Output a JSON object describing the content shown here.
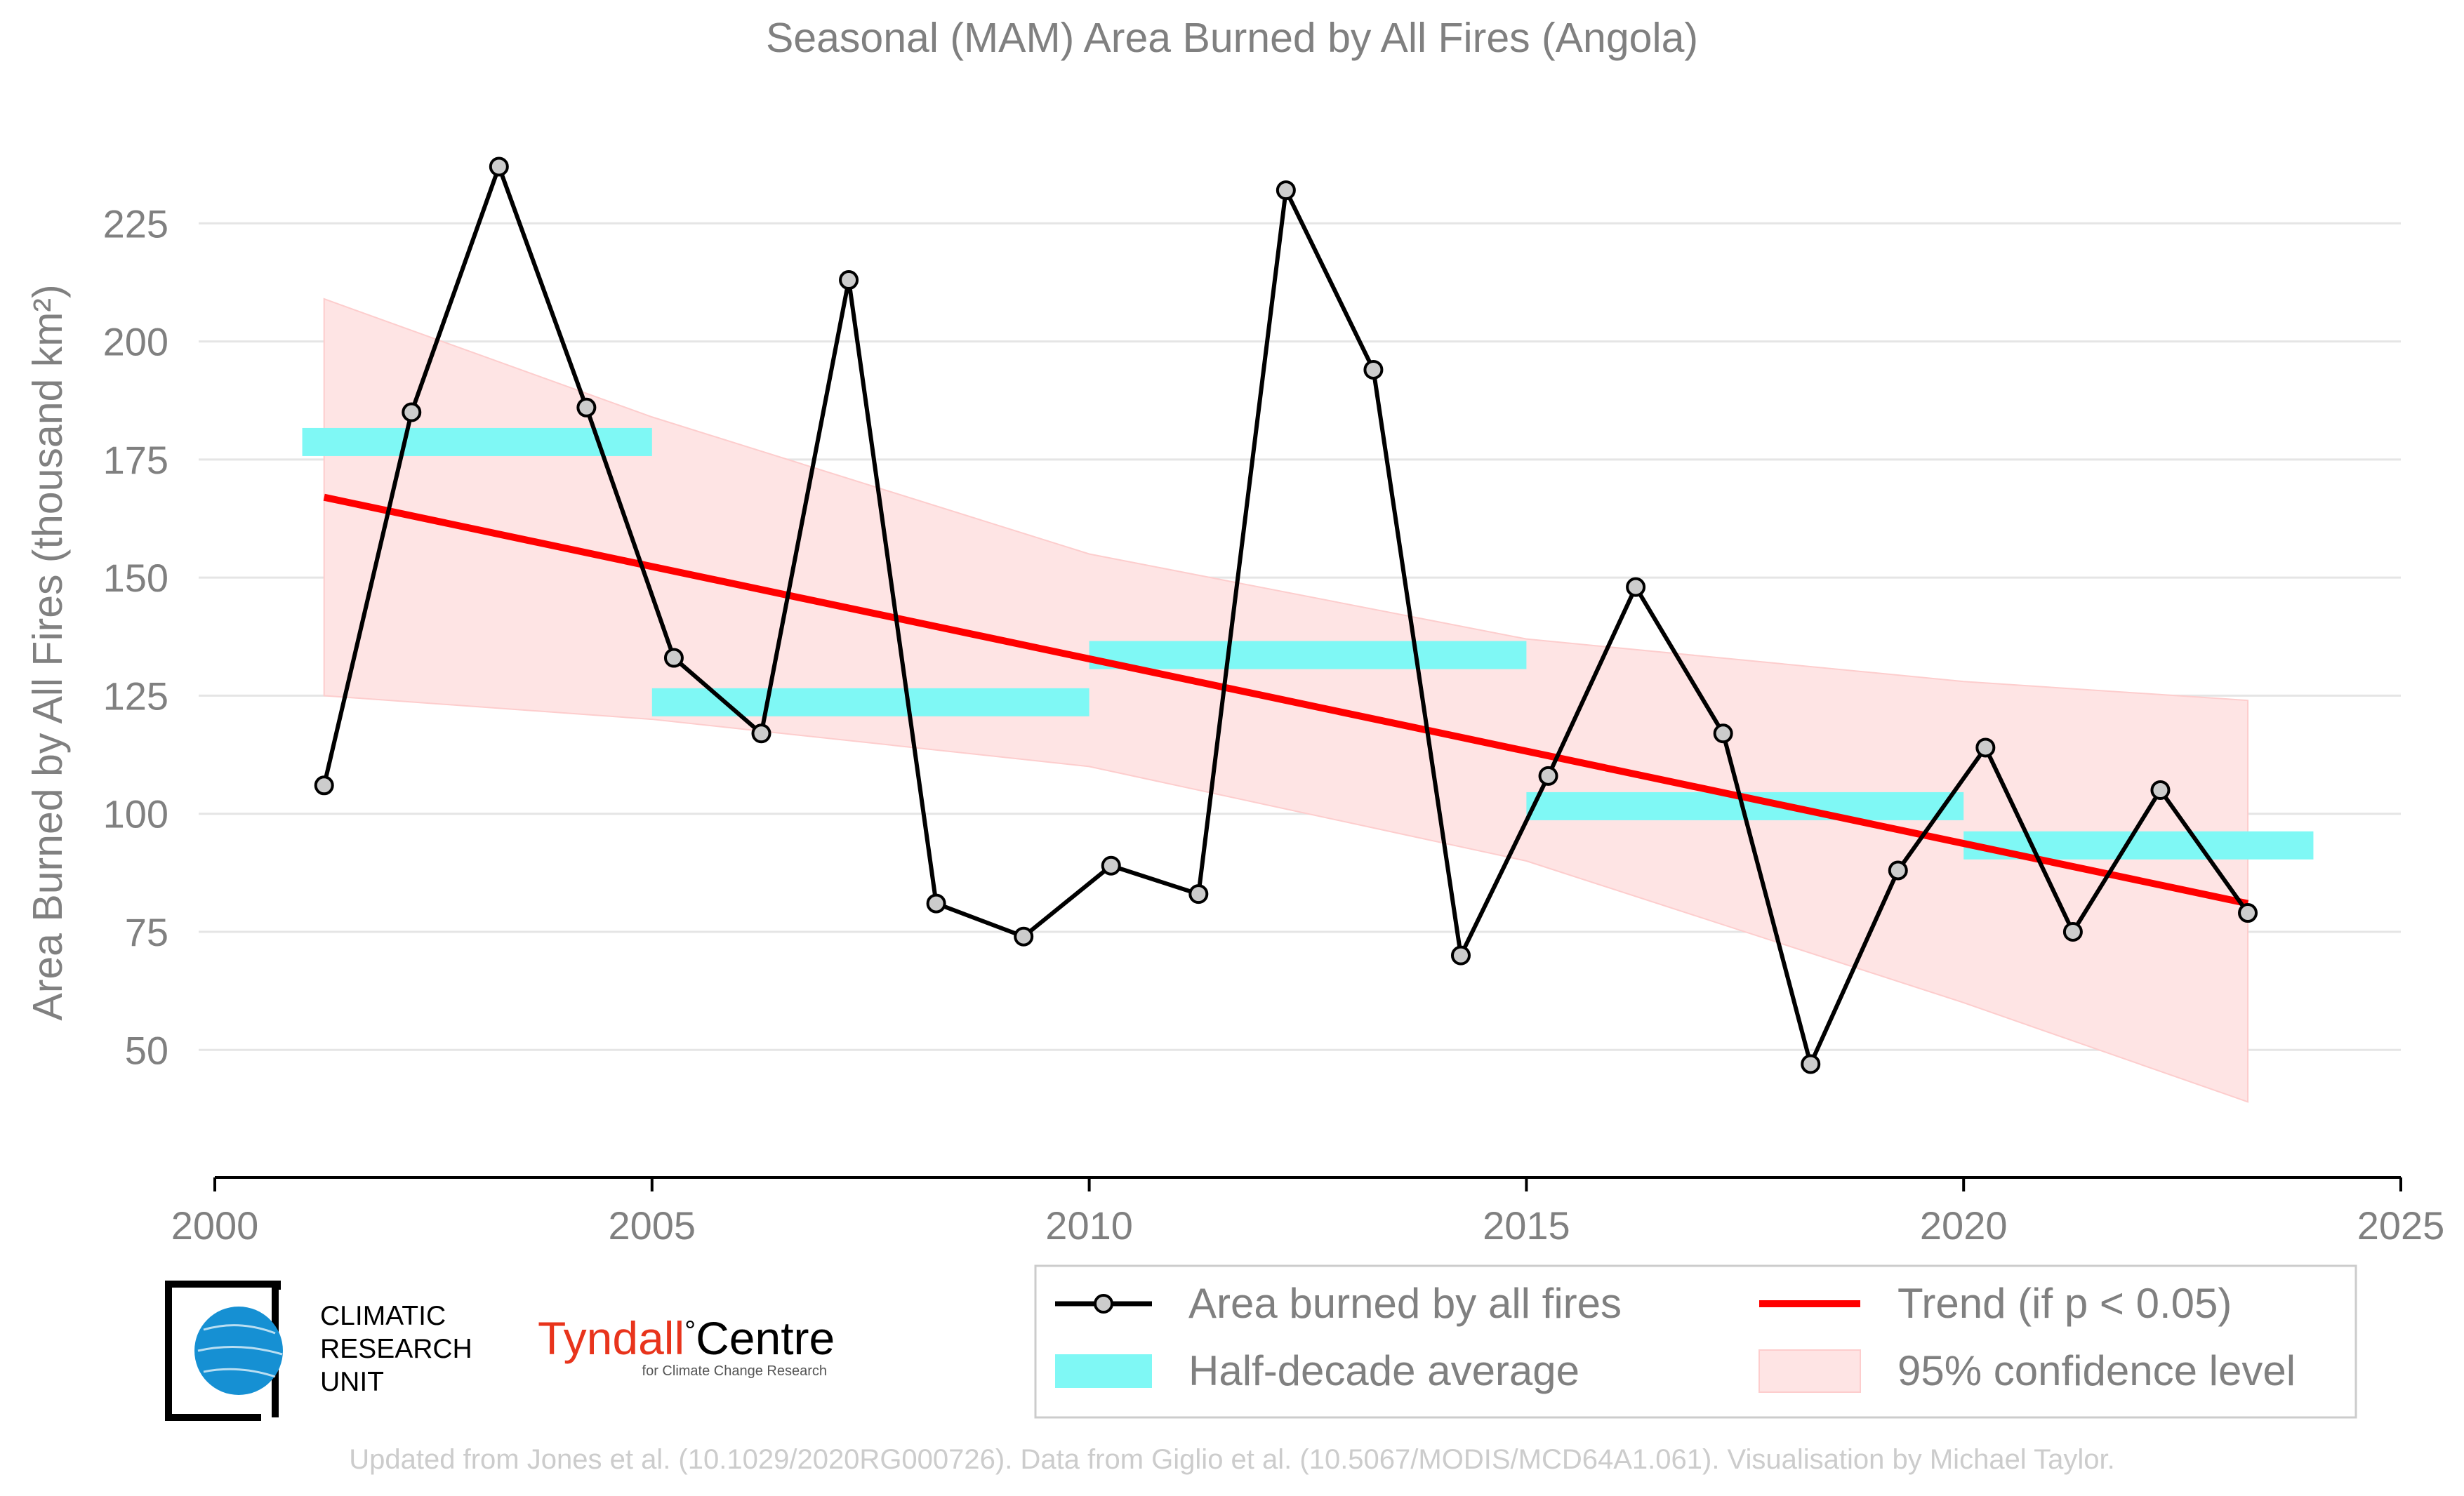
{
  "chart_data": {
    "type": "line",
    "title": "Seasonal (MAM) Area Burned by All Fires (Angola)",
    "ylabel": "Area Burned by All Fires (thousand km²)",
    "xlabel": "",
    "xlim": [
      2000,
      2025
    ],
    "ylim": [
      23,
      250
    ],
    "x_ticks": [
      2000,
      2005,
      2010,
      2015,
      2020,
      2025
    ],
    "y_ticks": [
      50,
      75,
      100,
      125,
      150,
      175,
      200,
      225
    ],
    "grid": "horizontal",
    "series": [
      {
        "name": "Area burned by all fires",
        "x": [
          2001.25,
          2002.25,
          2003.25,
          2004.25,
          2005.25,
          2006.25,
          2007.25,
          2008.25,
          2009.25,
          2010.25,
          2011.25,
          2012.25,
          2013.25,
          2014.25,
          2015.25,
          2016.25,
          2017.25,
          2018.25,
          2019.25,
          2020.25,
          2021.25,
          2022.25,
          2023.25
        ],
        "values": [
          106,
          185,
          237,
          186,
          133,
          117,
          213,
          81,
          74,
          89,
          83,
          232,
          194,
          70,
          108,
          148,
          117,
          47,
          88,
          114,
          75,
          105,
          79
        ],
        "color": "#000000"
      },
      {
        "name": "Trend (if p < 0.05)",
        "x": [
          2001.25,
          2023.25
        ],
        "values": [
          167,
          81
        ],
        "color": "#ff0000"
      }
    ],
    "half_decade_averages": [
      {
        "start": 2001,
        "end": 2005,
        "value": 178.7
      },
      {
        "start": 2005,
        "end": 2010,
        "value": 123.6
      },
      {
        "start": 2010,
        "end": 2015,
        "value": 133.6
      },
      {
        "start": 2015,
        "end": 2020,
        "value": 101.6
      },
      {
        "start": 2020,
        "end": 2024,
        "value": 93.3
      }
    ],
    "confidence_band": {
      "x": [
        2001.25,
        2005,
        2010,
        2015,
        2020,
        2023.25
      ],
      "upper": [
        209,
        184,
        155,
        137,
        128,
        124
      ],
      "lower": [
        125,
        120,
        110,
        90,
        60,
        39
      ]
    },
    "legend": {
      "placement": "bottom-right",
      "items": [
        {
          "label": "Area burned by all fires",
          "symbol": "line-marker"
        },
        {
          "label": "Trend (if p < 0.05)",
          "symbol": "line"
        },
        {
          "label": "Half-decade average",
          "symbol": "bar"
        },
        {
          "label": "95% confidence level",
          "symbol": "patch"
        }
      ]
    },
    "colors": {
      "observed": "#000000",
      "marker_fill": "#cccccc",
      "trend": "#ff0000",
      "half_decade": "#7ff8f5",
      "confidence": "#fee4e4",
      "confidence_edge": "#fdcdcd",
      "grid": "#e5e5e5",
      "text": "#808080"
    }
  },
  "logos": {
    "cru": {
      "line1": "CLIMATIC",
      "line2": "RESEARCH",
      "line3": "UNIT"
    },
    "tyndall": {
      "name": "Tyndall",
      "degree": "°",
      "centre": "Centre",
      "sub": "for Climate Change Research"
    }
  },
  "footer": {
    "credit": "Updated from Jones et al. (10.1029/2020RG000726). Data from Giglio et al. (10.5067/MODIS/MCD64A1.061). Visualisation by Michael Taylor."
  }
}
